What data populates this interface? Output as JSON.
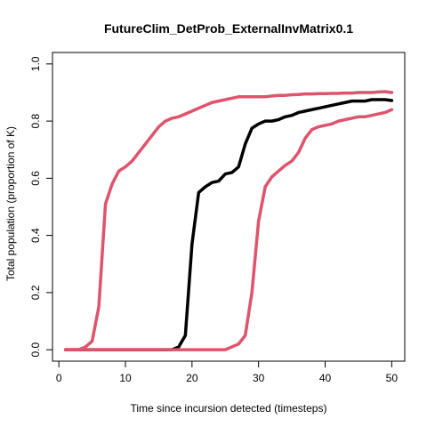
{
  "chart_data": {
    "type": "line",
    "title": "FutureClim_DetProb_ExternalInvMatrix0.1",
    "xlabel": "Time since incursion detected (timesteps)",
    "ylabel": "Total population (proportion of K)",
    "xlim": [
      1,
      50
    ],
    "ylim": [
      0,
      1
    ],
    "xticks": [
      0,
      10,
      20,
      30,
      40,
      50
    ],
    "yticks": [
      0.0,
      0.2,
      0.4,
      0.6,
      0.8,
      1.0
    ],
    "ytick_labels": [
      "0.0",
      "0.2",
      "0.4",
      "0.6",
      "0.8",
      "1.0"
    ],
    "grid": false,
    "legend": "none",
    "series": [
      {
        "color": "#000000",
        "x": [
          1,
          2,
          3,
          4,
          5,
          6,
          7,
          8,
          9,
          10,
          11,
          12,
          13,
          14,
          15,
          16,
          17,
          18,
          19,
          20,
          21,
          22,
          23,
          24,
          25,
          26,
          27,
          28,
          29,
          30,
          31,
          32,
          33,
          34,
          35,
          36,
          37,
          38,
          39,
          40,
          41,
          42,
          43,
          44,
          45,
          46,
          47,
          48,
          49,
          50
        ],
        "y": [
          0,
          0,
          0,
          0,
          0,
          0,
          0,
          0,
          0,
          0,
          0,
          0,
          0,
          0,
          0,
          0,
          0,
          0.01,
          0.05,
          0.37,
          0.55,
          0.57,
          0.585,
          0.59,
          0.615,
          0.62,
          0.64,
          0.72,
          0.775,
          0.79,
          0.8,
          0.8,
          0.805,
          0.815,
          0.82,
          0.83,
          0.835,
          0.84,
          0.845,
          0.85,
          0.855,
          0.86,
          0.865,
          0.87,
          0.87,
          0.87,
          0.875,
          0.875,
          0.875,
          0.872
        ]
      },
      {
        "color": "#DF536B",
        "x": [
          1,
          2,
          3,
          4,
          5,
          6,
          7,
          8,
          9,
          10,
          11,
          12,
          13,
          14,
          15,
          16,
          17,
          18,
          19,
          20,
          21,
          22,
          23,
          24,
          25,
          26,
          27,
          28,
          29,
          30,
          31,
          32,
          33,
          34,
          35,
          36,
          37,
          38,
          39,
          40,
          41,
          42,
          43,
          44,
          45,
          46,
          47,
          48,
          49,
          50
        ],
        "y": [
          0,
          0,
          0,
          0.01,
          0.03,
          0.15,
          0.51,
          0.58,
          0.625,
          0.64,
          0.66,
          0.69,
          0.72,
          0.75,
          0.78,
          0.8,
          0.81,
          0.815,
          0.825,
          0.835,
          0.845,
          0.855,
          0.865,
          0.87,
          0.875,
          0.88,
          0.885,
          0.885,
          0.885,
          0.885,
          0.885,
          0.888,
          0.89,
          0.89,
          0.892,
          0.893,
          0.895,
          0.895,
          0.896,
          0.896,
          0.897,
          0.897,
          0.898,
          0.898,
          0.9,
          0.9,
          0.9,
          0.902,
          0.903,
          0.9
        ]
      },
      {
        "color": "#DF536B",
        "x": [
          1,
          2,
          3,
          4,
          5,
          6,
          7,
          8,
          9,
          10,
          11,
          12,
          13,
          14,
          15,
          16,
          17,
          18,
          19,
          20,
          21,
          22,
          23,
          24,
          25,
          26,
          27,
          28,
          29,
          30,
          31,
          32,
          33,
          34,
          35,
          36,
          37,
          38,
          39,
          40,
          41,
          42,
          43,
          44,
          45,
          46,
          47,
          48,
          49,
          50
        ],
        "y": [
          0,
          0,
          0,
          0,
          0,
          0,
          0,
          0,
          0,
          0,
          0,
          0,
          0,
          0,
          0,
          0,
          0,
          0,
          0,
          0,
          0,
          0,
          0,
          0,
          0,
          0.01,
          0.02,
          0.05,
          0.2,
          0.45,
          0.57,
          0.605,
          0.625,
          0.645,
          0.66,
          0.69,
          0.74,
          0.77,
          0.78,
          0.785,
          0.79,
          0.8,
          0.805,
          0.81,
          0.815,
          0.815,
          0.82,
          0.825,
          0.83,
          0.84
        ]
      }
    ]
  }
}
